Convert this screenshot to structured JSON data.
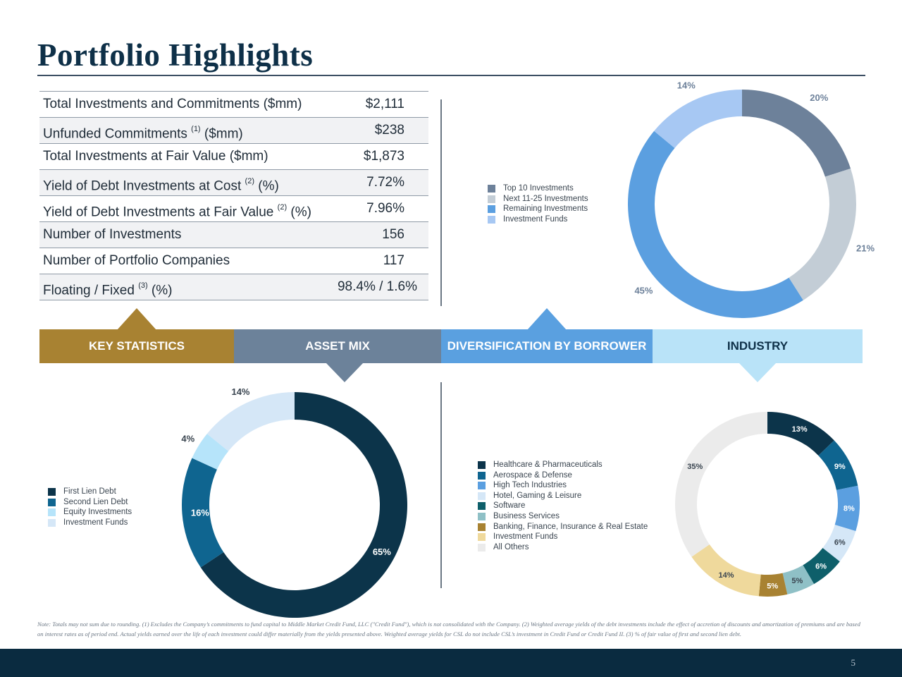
{
  "title": "Portfolio Highlights",
  "key_statistics": [
    {
      "label": "Total Investments and Commitments ($mm)",
      "sup": "",
      "suffix": "",
      "value": "$2,111"
    },
    {
      "label": "Unfunded Commitments",
      "sup": "(1)",
      "suffix": " ($mm)",
      "value": "$238"
    },
    {
      "label": "Total Investments at Fair Value ($mm)",
      "sup": "",
      "suffix": "",
      "value": "$1,873"
    },
    {
      "label": "Yield of Debt Investments at Cost",
      "sup": "(2)",
      "suffix": " (%)",
      "value": "7.72%"
    },
    {
      "label": "Yield of Debt Investments at Fair Value",
      "sup": "(2)",
      "suffix": " (%)",
      "value": "7.96%"
    },
    {
      "label": "Number of Investments",
      "sup": "",
      "suffix": "",
      "value": "156"
    },
    {
      "label": "Number of Portfolio Companies",
      "sup": "",
      "suffix": "",
      "value": "117"
    },
    {
      "label": "Floating / Fixed",
      "sup": "(3)",
      "suffix": " (%)",
      "value": "98.4% / 1.6%"
    }
  ],
  "bands": {
    "key_statistics": "KEY STATISTICS",
    "asset_mix": "ASSET MIX",
    "diversification": "DIVERSIFICATION BY BORROWER",
    "industry": "INDUSTRY"
  },
  "colors": {
    "gold": "#a88232",
    "slate": "#6c829a",
    "blue": "#5aa0e0",
    "light_blue": "#b9e3f8",
    "navy": "#0e3048"
  },
  "chart_data": [
    {
      "id": "diversification",
      "type": "pie",
      "title": "",
      "series": [
        {
          "name": "Top 10 Investments",
          "value": 20,
          "label": "20%",
          "color": "#6d819a"
        },
        {
          "name": "Next 11-25 Investments",
          "value": 21,
          "label": "21%",
          "color": "#c3cdd6"
        },
        {
          "name": "Remaining Investments",
          "value": 45,
          "label": "45%",
          "color": "#5b9fe0"
        },
        {
          "name": "Investment Funds",
          "value": 14,
          "label": "14%",
          "color": "#a7c8f3"
        }
      ]
    },
    {
      "id": "asset_mix",
      "type": "pie",
      "title": "",
      "series": [
        {
          "name": "First Lien Debt",
          "value": 65,
          "label": "65%",
          "color": "#0c344a"
        },
        {
          "name": "Second Lien Debt",
          "value": 16,
          "label": "16%",
          "color": "#0f6590"
        },
        {
          "name": "Equity Investments",
          "value": 4,
          "label": "4%",
          "color": "#b6e4fa"
        },
        {
          "name": "Investment Funds",
          "value": 14,
          "label": "14%",
          "color": "#d5e7f7"
        }
      ]
    },
    {
      "id": "industry",
      "type": "pie",
      "title": "",
      "series": [
        {
          "name": "Healthcare & Pharmaceuticals",
          "value": 13,
          "label": "13%",
          "color": "#0c344a"
        },
        {
          "name": "Aerospace & Defense",
          "value": 9,
          "label": "9%",
          "color": "#0f6590"
        },
        {
          "name": "High Tech Industries",
          "value": 8,
          "label": "8%",
          "color": "#5b9fe0"
        },
        {
          "name": "Hotel, Gaming & Leisure",
          "value": 6,
          "label": "6%",
          "color": "#d5e7f7"
        },
        {
          "name": "Software",
          "value": 6,
          "label": "6%",
          "color": "#0e5f6a"
        },
        {
          "name": "Business Services",
          "value": 5,
          "label": "5%",
          "color": "#8fc0c6"
        },
        {
          "name": "Banking, Finance, Insurance & Real Estate",
          "value": 5,
          "label": "5%",
          "color": "#a88232"
        },
        {
          "name": "Investment Funds",
          "value": 14,
          "label": "14%",
          "color": "#efd99c"
        },
        {
          "name": "All Others",
          "value": 35,
          "label": "35%",
          "color": "#ebebeb"
        }
      ]
    }
  ],
  "note": "Note: Totals may not sum due to rounding. (1) Excludes the Company’s commitments to fund capital to Middle Market Credit Fund, LLC (\"Credit Fund\"), which is not consolidated with the Company. (2) Weighted average yields of the debt investments include the effect of accretion of discounts and amortization of premiums and are based on interest rates as of period end. Actual yields earned over the life of each investment could differ materially from the yields presented above. Weighted average yields for CSL do not include CSL’s investment in Credit Fund or Credit Fund II. (3) % of fair value of first and second lien debt.",
  "page_number": "5"
}
